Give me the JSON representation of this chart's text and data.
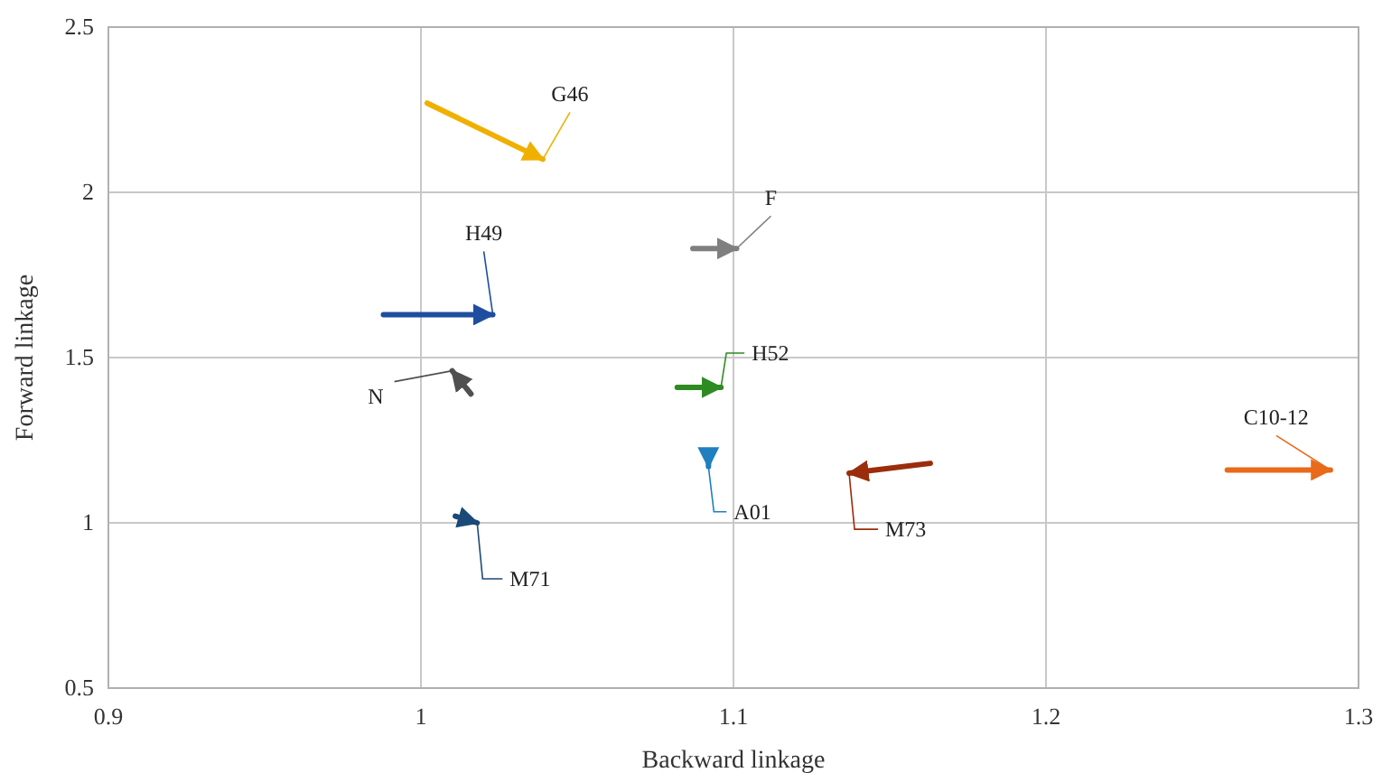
{
  "chart_data": {
    "type": "line",
    "xlabel": "Backward linkage",
    "ylabel": "Forward linkage",
    "xlim": [
      0.9,
      1.3
    ],
    "ylim": [
      0.5,
      2.5
    ],
    "xticks": [
      0.9,
      1,
      1.1,
      1.2,
      1.3
    ],
    "yticks": [
      0.5,
      1,
      1.5,
      2,
      2.5
    ],
    "grid": true,
    "series": [
      {
        "name": "G46",
        "color": "#f0b000",
        "x": [
          1.002,
          1.039
        ],
        "values": [
          2.27,
          2.1
        ]
      },
      {
        "name": "H49",
        "color": "#1f4e9f",
        "x": [
          0.988,
          1.023
        ],
        "values": [
          1.63,
          1.63
        ]
      },
      {
        "name": "N",
        "color": "#505050",
        "x": [
          1.016,
          1.01
        ],
        "values": [
          1.39,
          1.46
        ]
      },
      {
        "name": "F",
        "color": "#7f7f7f",
        "x": [
          1.087,
          1.101
        ],
        "values": [
          1.83,
          1.83
        ]
      },
      {
        "name": "H52",
        "color": "#2e8b22",
        "x": [
          1.082,
          1.096
        ],
        "values": [
          1.41,
          1.41
        ]
      },
      {
        "name": "A01",
        "color": "#1f7fc0",
        "x": [
          1.092,
          1.092
        ],
        "values": [
          1.2,
          1.17
        ]
      },
      {
        "name": "M73",
        "color": "#9b2d0a",
        "x": [
          1.163,
          1.137
        ],
        "values": [
          1.18,
          1.15
        ]
      },
      {
        "name": "C10-12",
        "color": "#e86a1a",
        "x": [
          1.258,
          1.291
        ],
        "values": [
          1.16,
          1.16
        ]
      },
      {
        "name": "M71",
        "color": "#1b4a78",
        "x": [
          1.011,
          1.018
        ],
        "values": [
          1.02,
          1.0
        ]
      }
    ]
  }
}
